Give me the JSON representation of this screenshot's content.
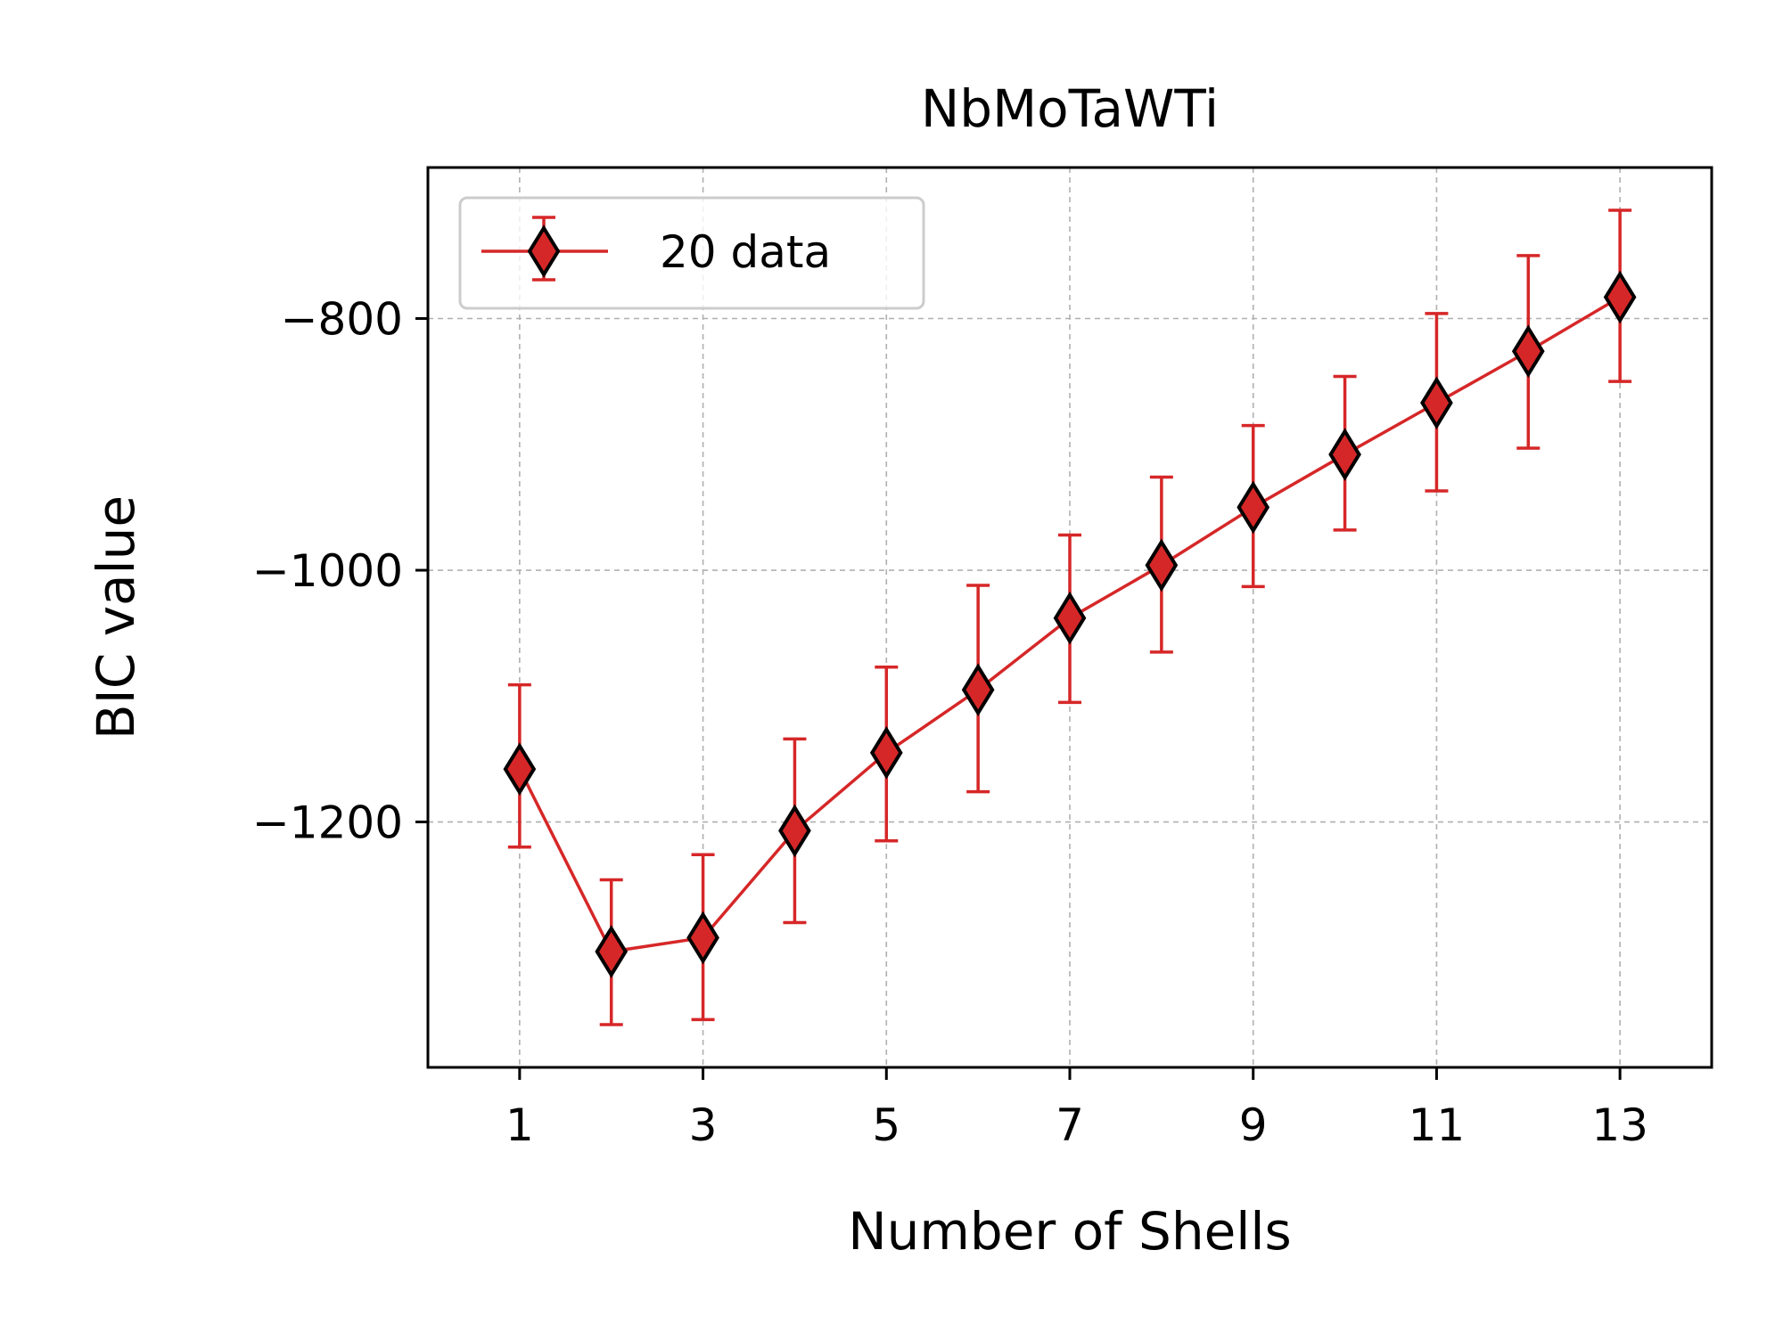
{
  "chart_data": {
    "type": "line",
    "title": "NbMoTaWTi",
    "xlabel": "Number of Shells",
    "ylabel": "BIC value",
    "xlim": [
      0,
      14
    ],
    "ylim": [
      -1395,
      -680
    ],
    "x_ticks": [
      1,
      3,
      5,
      7,
      9,
      11,
      13
    ],
    "y_ticks": [
      -800,
      -1000,
      -1200
    ],
    "grid": true,
    "legend": {
      "position": "top-left",
      "entries": [
        "20 data"
      ]
    },
    "series": [
      {
        "name": "20 data",
        "color": "#d62728",
        "marker": "diamond",
        "marker_edge_color": "#000000",
        "x": [
          1,
          2,
          3,
          4,
          5,
          6,
          7,
          8,
          9,
          10,
          11,
          12,
          13
        ],
        "y": [
          -1158,
          -1303,
          -1292,
          -1207,
          -1145,
          -1095,
          -1038,
          -996,
          -950,
          -908,
          -867,
          -826,
          -783
        ],
        "yerr_lower": [
          62,
          58,
          65,
          73,
          70,
          81,
          67,
          69,
          63,
          60,
          70,
          77,
          67
        ],
        "yerr_upper": [
          67,
          57,
          66,
          73,
          68,
          83,
          66,
          70,
          65,
          62,
          71,
          76,
          69
        ]
      }
    ]
  }
}
